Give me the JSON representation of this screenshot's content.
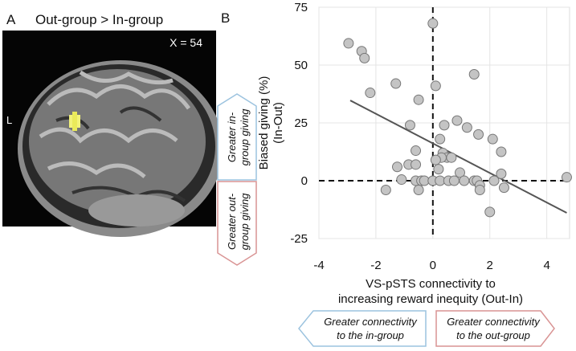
{
  "panel_a": {
    "letter": "A",
    "title": "Out-group > In-group",
    "slice": "X = 54",
    "side": "L"
  },
  "chart_data": {
    "type": "scatter",
    "panel": "B",
    "x": [
      -2.96,
      -2.5,
      -2.4,
      -2.2,
      -1.3,
      0,
      0.1,
      1.45,
      0.25,
      -0.5,
      -0.8,
      0.85,
      0.4,
      1.2,
      1.6,
      2.1,
      2.4,
      -0.6,
      0.35,
      0.5,
      0.65,
      0.3,
      0.1,
      0.2,
      0.95,
      2.4,
      -0.85,
      -0.6,
      -1.25,
      -1.1,
      -0.6,
      -0.4,
      -0.3,
      0,
      0.25,
      0.55,
      0.75,
      1.1,
      1.45,
      1.55,
      1.65,
      1.65,
      2.15,
      2.5,
      -0.5,
      -1.65,
      2.0,
      4.7
    ],
    "values": [
      59.4,
      56,
      53,
      38,
      42,
      68,
      41,
      46,
      18,
      35,
      24,
      26,
      24,
      23,
      20,
      18,
      12.5,
      13,
      12,
      10,
      10,
      10,
      9,
      5,
      3.5,
      3,
      7,
      7,
      6,
      0.5,
      0,
      0,
      0,
      0,
      0,
      0,
      0,
      0,
      0,
      0,
      -2,
      -4,
      0,
      -3,
      -4,
      -4,
      -13.5,
      1.5
    ],
    "color": "#c4c4c4",
    "xlim": [
      -4,
      4.8
    ],
    "ylim": [
      -25,
      75
    ],
    "xticks": [
      -4,
      -2,
      0,
      2,
      4
    ],
    "yticks": [
      -25,
      0,
      25,
      50,
      75
    ],
    "grid": true,
    "fit_line": {
      "x": [
        -2.9,
        4.7
      ],
      "values": [
        34.7,
        -13.9
      ]
    },
    "reference_lines": {
      "x": 0,
      "y": 0
    },
    "ylabel_lines": [
      "Biased giving (%)",
      "(In-Out)"
    ],
    "xlabel_lines": [
      "VS-pSTS connectivity to",
      "increasing reward inequity (Out-In)"
    ],
    "y_annotations": [
      [
        "Greater in-",
        "group giving"
      ],
      [
        "Greater out-",
        "group giving"
      ]
    ],
    "x_annotations": [
      [
        "Greater connectivity",
        "to the in-group"
      ],
      [
        "Greater connectivity",
        "to the out-group"
      ]
    ]
  }
}
